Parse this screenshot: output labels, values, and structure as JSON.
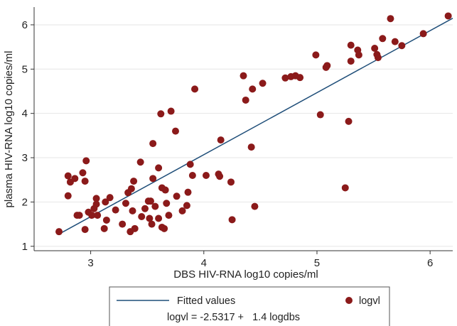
{
  "chart_data": {
    "type": "scatter",
    "title": "",
    "xlabel": "DBS HIV-RNA log10 copies/ml",
    "ylabel": "plasma HIV-RNA log10 copies/ml",
    "xlim": [
      2.5,
      6.2
    ],
    "ylim": [
      0.9,
      6.4
    ],
    "xticks": [
      3,
      4,
      5,
      6
    ],
    "yticks": [
      1,
      2,
      3,
      4,
      5,
      6
    ],
    "grid": "horizontal",
    "legend_position": "bottom",
    "fit": {
      "name": "Fitted values",
      "intercept": -2.5317,
      "slope": 1.4,
      "color": "#1f4e79",
      "x_range": [
        2.72,
        6.2
      ]
    },
    "series": [
      {
        "name": "logvl",
        "color": "#8b1a1a",
        "points": [
          [
            2.72,
            1.33
          ],
          [
            2.8,
            2.59
          ],
          [
            2.8,
            2.14
          ],
          [
            2.82,
            2.45
          ],
          [
            2.86,
            2.53
          ],
          [
            2.88,
            1.7
          ],
          [
            2.9,
            1.7
          ],
          [
            2.93,
            2.66
          ],
          [
            2.95,
            2.47
          ],
          [
            2.96,
            2.93
          ],
          [
            2.95,
            1.38
          ],
          [
            2.98,
            1.77
          ],
          [
            3.01,
            1.7
          ],
          [
            3.03,
            1.85
          ],
          [
            3.05,
            1.95
          ],
          [
            3.05,
            2.08
          ],
          [
            3.06,
            1.7
          ],
          [
            3.12,
            1.4
          ],
          [
            3.13,
            2.0
          ],
          [
            3.14,
            1.59
          ],
          [
            3.17,
            2.1
          ],
          [
            3.22,
            1.82
          ],
          [
            3.28,
            1.5
          ],
          [
            3.31,
            1.97
          ],
          [
            3.33,
            2.21
          ],
          [
            3.35,
            1.33
          ],
          [
            3.36,
            2.3
          ],
          [
            3.37,
            1.8
          ],
          [
            3.38,
            2.47
          ],
          [
            3.39,
            1.4
          ],
          [
            3.44,
            2.9
          ],
          [
            3.45,
            1.67
          ],
          [
            3.48,
            1.85
          ],
          [
            3.51,
            2.02
          ],
          [
            3.52,
            1.63
          ],
          [
            3.53,
            2.02
          ],
          [
            3.54,
            1.5
          ],
          [
            3.55,
            3.32
          ],
          [
            3.55,
            2.53
          ],
          [
            3.57,
            1.9
          ],
          [
            3.6,
            1.63
          ],
          [
            3.6,
            2.77
          ],
          [
            3.62,
            3.99
          ],
          [
            3.63,
            2.32
          ],
          [
            3.63,
            1.43
          ],
          [
            3.65,
            1.4
          ],
          [
            3.67,
            1.97
          ],
          [
            3.69,
            1.7
          ],
          [
            3.66,
            2.27
          ],
          [
            3.71,
            4.05
          ],
          [
            3.75,
            3.6
          ],
          [
            3.76,
            2.13
          ],
          [
            3.81,
            1.8
          ],
          [
            3.85,
            1.92
          ],
          [
            3.86,
            2.22
          ],
          [
            3.88,
            2.85
          ],
          [
            3.9,
            2.6
          ],
          [
            3.92,
            4.55
          ],
          [
            4.02,
            2.6
          ],
          [
            4.13,
            2.63
          ],
          [
            4.14,
            2.58
          ],
          [
            4.15,
            3.4
          ],
          [
            4.24,
            2.45
          ],
          [
            4.25,
            1.6
          ],
          [
            4.35,
            4.85
          ],
          [
            4.37,
            4.3
          ],
          [
            4.42,
            3.24
          ],
          [
            4.43,
            4.55
          ],
          [
            4.45,
            1.9
          ],
          [
            4.52,
            4.68
          ],
          [
            4.72,
            4.8
          ],
          [
            4.77,
            4.83
          ],
          [
            4.81,
            4.85
          ],
          [
            4.85,
            4.81
          ],
          [
            4.99,
            5.32
          ],
          [
            5.03,
            3.97
          ],
          [
            5.08,
            5.04
          ],
          [
            5.09,
            5.08
          ],
          [
            5.25,
            2.32
          ],
          [
            5.28,
            3.82
          ],
          [
            5.3,
            5.54
          ],
          [
            5.3,
            5.18
          ],
          [
            5.36,
            5.43
          ],
          [
            5.37,
            5.32
          ],
          [
            5.51,
            5.47
          ],
          [
            5.53,
            5.33
          ],
          [
            5.54,
            5.26
          ],
          [
            5.58,
            5.69
          ],
          [
            5.65,
            6.14
          ],
          [
            5.69,
            5.62
          ],
          [
            5.75,
            5.53
          ],
          [
            5.94,
            5.8
          ],
          [
            6.16,
            6.2
          ]
        ]
      }
    ]
  },
  "legend": {
    "fitted_label": "Fitted values",
    "scatter_label": "logvl",
    "equation": "logvl = -2.5317 +   1.4 logdbs"
  }
}
